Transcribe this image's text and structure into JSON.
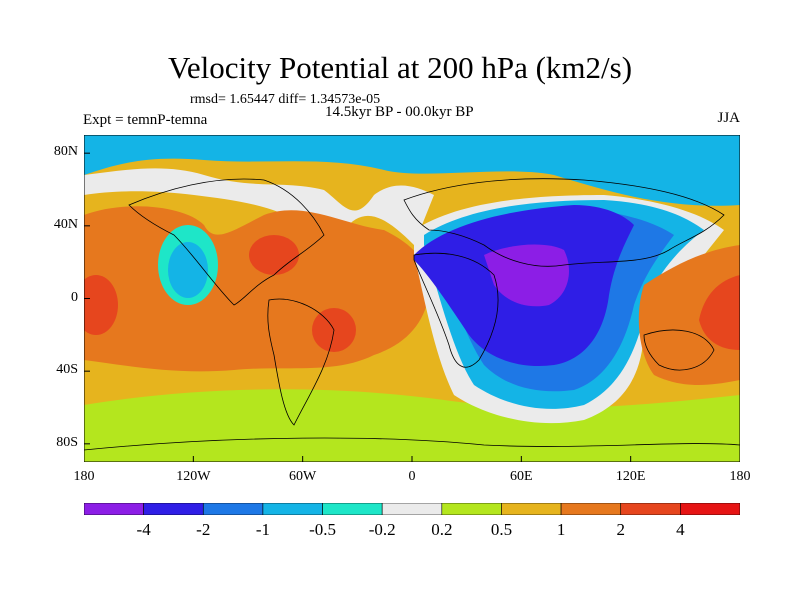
{
  "header": {
    "title": "Velocity Potential at 200 hPa (km2/s)",
    "stats": "rmsd= 1.65447 diff= 1.34573e-05",
    "period": "14.5kyr BP - 00.0kyr BP",
    "experiment": "Expt = temnP-temna",
    "season": "JJA"
  },
  "axes": {
    "lat_labels": [
      "80N",
      "40N",
      "0",
      "40S",
      "80S"
    ],
    "lat_values": [
      80,
      40,
      0,
      -40,
      -80
    ],
    "lon_labels": [
      "180",
      "120W",
      "60W",
      "0",
      "60E",
      "120E",
      "180"
    ],
    "lon_values": [
      -180,
      -120,
      -60,
      0,
      60,
      120,
      180
    ],
    "lat_range": [
      -90,
      90
    ],
    "lon_range": [
      -180,
      180
    ]
  },
  "colorbar": {
    "levels": [
      "-4",
      "-2",
      "-1",
      "-0.5",
      "-0.2",
      "0.2",
      "0.5",
      "1",
      "2",
      "4"
    ],
    "colors": [
      "#8c1ee6",
      "#2f1ee6",
      "#1e78e6",
      "#14b4e6",
      "#1ee6c8",
      "#ebebeb",
      "#b4e61e",
      "#e6b41e",
      "#e6781e",
      "#e6461e",
      "#e61414"
    ]
  },
  "map": {
    "colors": {
      "ocean_default": "#e6b41e",
      "land_line": "#000000"
    }
  }
}
